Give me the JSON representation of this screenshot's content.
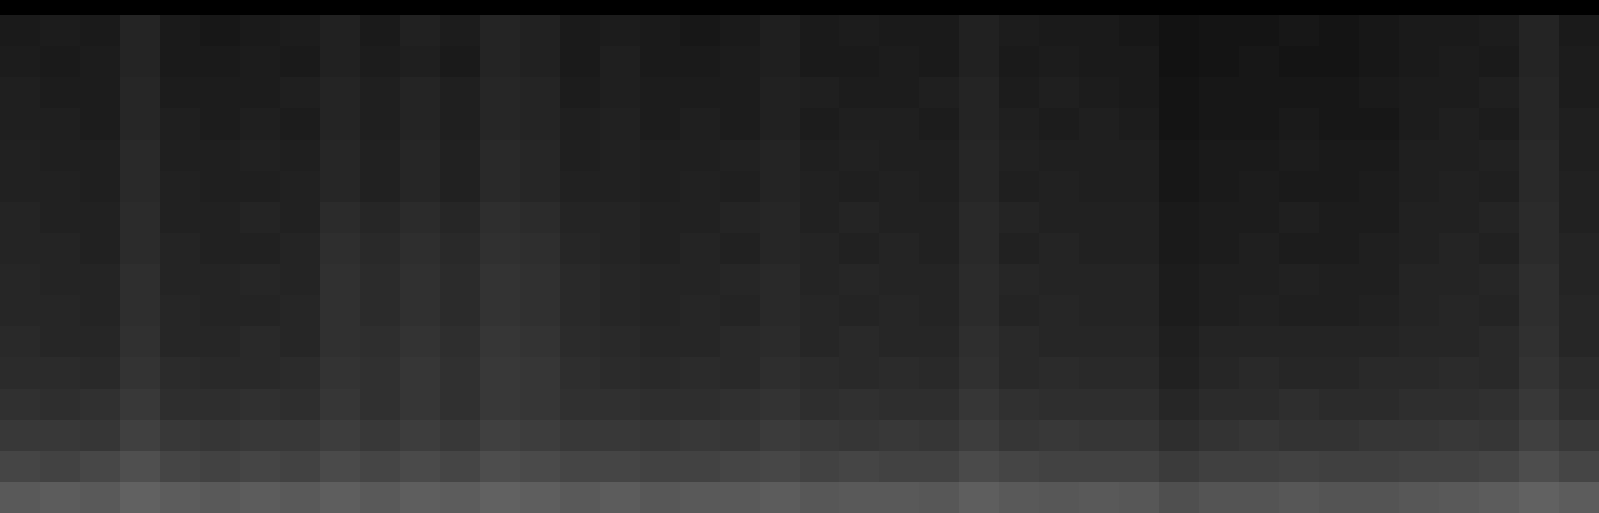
{
  "chart_data": {
    "type": "heatmap",
    "tick_labels": false,
    "color_range": [
      0,
      100
    ],
    "cells": [
      [
        10,
        11,
        10,
        14,
        10,
        9,
        10,
        11,
        13,
        10,
        13,
        11,
        14,
        13,
        10,
        11,
        10,
        9,
        10,
        12,
        10,
        11,
        10,
        10,
        13,
        11,
        10,
        10,
        9,
        7,
        8,
        8,
        9,
        8,
        9,
        10,
        10,
        11,
        14,
        10
      ],
      [
        11,
        10,
        11,
        14,
        10,
        10,
        11,
        10,
        13,
        11,
        12,
        10,
        14,
        13,
        10,
        12,
        10,
        10,
        11,
        12,
        10,
        10,
        11,
        10,
        13,
        10,
        11,
        10,
        10,
        7,
        8,
        9,
        8,
        8,
        9,
        10,
        11,
        10,
        14,
        11
      ],
      [
        12,
        11,
        11,
        15,
        11,
        11,
        11,
        12,
        14,
        12,
        14,
        12,
        15,
        14,
        11,
        12,
        11,
        11,
        11,
        13,
        12,
        11,
        11,
        12,
        14,
        11,
        12,
        11,
        10,
        8,
        9,
        9,
        9,
        9,
        10,
        11,
        11,
        12,
        15,
        11
      ],
      [
        12,
        12,
        11,
        15,
        12,
        11,
        12,
        11,
        14,
        12,
        14,
        12,
        15,
        14,
        12,
        13,
        11,
        12,
        11,
        13,
        11,
        12,
        12,
        11,
        14,
        12,
        11,
        12,
        11,
        8,
        9,
        9,
        10,
        9,
        9,
        11,
        12,
        11,
        15,
        12
      ],
      [
        13,
        12,
        12,
        16,
        12,
        12,
        13,
        12,
        15,
        13,
        15,
        13,
        16,
        15,
        12,
        13,
        12,
        12,
        13,
        14,
        12,
        13,
        12,
        12,
        15,
        13,
        12,
        12,
        12,
        9,
        10,
        10,
        11,
        10,
        10,
        12,
        12,
        13,
        16,
        12
      ],
      [
        13,
        13,
        12,
        16,
        13,
        12,
        12,
        13,
        15,
        13,
        15,
        13,
        16,
        15,
        13,
        13,
        12,
        13,
        12,
        14,
        13,
        12,
        13,
        12,
        15,
        12,
        13,
        12,
        12,
        9,
        10,
        11,
        10,
        10,
        11,
        12,
        13,
        12,
        16,
        13
      ],
      [
        14,
        13,
        13,
        17,
        13,
        13,
        14,
        13,
        17,
        15,
        17,
        15,
        18,
        17,
        14,
        14,
        13,
        13,
        14,
        15,
        13,
        14,
        13,
        13,
        16,
        14,
        13,
        13,
        13,
        10,
        11,
        11,
        12,
        11,
        11,
        13,
        13,
        14,
        17,
        13
      ],
      [
        14,
        14,
        13,
        17,
        14,
        13,
        13,
        14,
        18,
        16,
        18,
        16,
        19,
        18,
        15,
        14,
        13,
        14,
        13,
        15,
        14,
        13,
        14,
        13,
        16,
        13,
        14,
        13,
        13,
        10,
        11,
        12,
        11,
        11,
        12,
        13,
        14,
        13,
        17,
        14
      ],
      [
        15,
        14,
        14,
        18,
        14,
        14,
        15,
        14,
        19,
        17,
        19,
        17,
        20,
        19,
        16,
        15,
        14,
        14,
        15,
        16,
        14,
        15,
        14,
        14,
        17,
        15,
        14,
        14,
        14,
        11,
        12,
        12,
        13,
        12,
        12,
        14,
        14,
        15,
        18,
        14
      ],
      [
        15,
        15,
        14,
        18,
        15,
        14,
        14,
        15,
        19,
        17,
        19,
        17,
        20,
        19,
        16,
        15,
        14,
        15,
        14,
        16,
        15,
        14,
        15,
        14,
        17,
        14,
        15,
        14,
        14,
        11,
        12,
        13,
        12,
        12,
        13,
        14,
        15,
        14,
        18,
        15
      ],
      [
        16,
        15,
        15,
        19,
        15,
        15,
        16,
        15,
        19,
        18,
        20,
        18,
        21,
        20,
        17,
        16,
        15,
        15,
        16,
        17,
        15,
        16,
        15,
        15,
        18,
        16,
        15,
        15,
        15,
        12,
        14,
        14,
        14,
        14,
        14,
        15,
        15,
        16,
        19,
        15
      ],
      [
        17,
        17,
        16,
        20,
        17,
        16,
        16,
        17,
        20,
        19,
        21,
        19,
        22,
        21,
        18,
        17,
        16,
        17,
        16,
        18,
        17,
        16,
        17,
        16,
        19,
        16,
        17,
        16,
        16,
        13,
        15,
        16,
        15,
        15,
        16,
        16,
        17,
        16,
        20,
        17
      ],
      [
        19,
        18,
        19,
        22,
        18,
        18,
        19,
        18,
        21,
        19,
        21,
        19,
        22,
        21,
        19,
        19,
        18,
        18,
        19,
        20,
        18,
        19,
        18,
        18,
        21,
        19,
        18,
        18,
        18,
        15,
        17,
        17,
        18,
        17,
        17,
        18,
        18,
        19,
        22,
        18
      ],
      [
        22,
        22,
        21,
        25,
        22,
        21,
        22,
        22,
        24,
        22,
        24,
        22,
        25,
        24,
        22,
        22,
        21,
        22,
        21,
        23,
        22,
        21,
        22,
        21,
        24,
        21,
        22,
        21,
        21,
        18,
        20,
        21,
        20,
        20,
        21,
        21,
        22,
        21,
        25,
        22
      ],
      [
        27,
        26,
        28,
        31,
        27,
        26,
        27,
        26,
        29,
        27,
        29,
        27,
        30,
        29,
        27,
        27,
        26,
        26,
        27,
        28,
        26,
        27,
        26,
        26,
        29,
        27,
        26,
        26,
        26,
        23,
        25,
        25,
        26,
        25,
        25,
        26,
        26,
        27,
        30,
        27
      ],
      [
        35,
        36,
        35,
        38,
        36,
        35,
        36,
        35,
        37,
        35,
        37,
        36,
        38,
        37,
        35,
        36,
        34,
        35,
        35,
        36,
        34,
        35,
        35,
        34,
        37,
        35,
        34,
        35,
        34,
        31,
        33,
        33,
        34,
        33,
        33,
        34,
        35,
        36,
        38,
        36
      ]
    ]
  }
}
